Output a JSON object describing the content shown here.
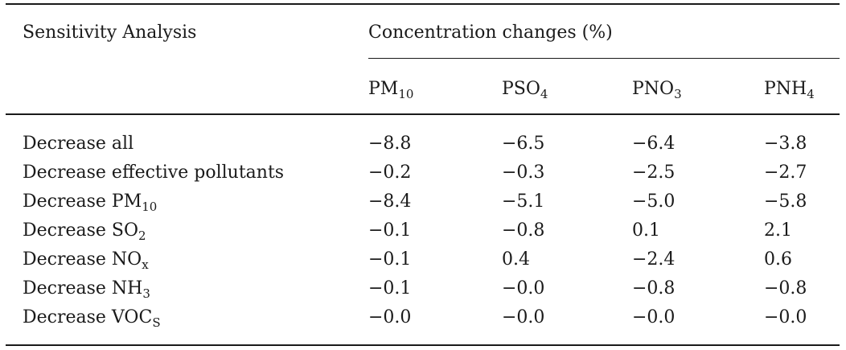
{
  "table": {
    "header": {
      "title": "Sensitivity Analysis",
      "group": "Concentration changes (%)",
      "columns": [
        {
          "base": "PM",
          "sub": "10"
        },
        {
          "base": "PSO",
          "sub": "4"
        },
        {
          "base": "PNO",
          "sub": "3"
        },
        {
          "base": "PNH",
          "sub": "4"
        }
      ]
    },
    "rows": [
      {
        "label": {
          "base": "Decrease all",
          "sub": ""
        },
        "values": [
          "−8.8",
          "−6.5",
          "−6.4",
          "−3.8"
        ]
      },
      {
        "label": {
          "base": "Decrease effective pollutants",
          "sub": ""
        },
        "values": [
          "−0.2",
          "−0.3",
          "−2.5",
          "−2.7"
        ]
      },
      {
        "label": {
          "base": "Decrease PM",
          "sub": "10"
        },
        "values": [
          "−8.4",
          "−5.1",
          "−5.0",
          "−5.8"
        ]
      },
      {
        "label": {
          "base": "Decrease SO",
          "sub": "2"
        },
        "values": [
          "−0.1",
          "−0.8",
          "0.1",
          "2.1"
        ]
      },
      {
        "label": {
          "base": "Decrease NO",
          "sub": "x"
        },
        "values": [
          "−0.1",
          "0.4",
          "−2.4",
          "0.6"
        ]
      },
      {
        "label": {
          "base": "Decrease NH",
          "sub": "3"
        },
        "values": [
          "−0.1",
          "−0.0",
          "−0.8",
          "−0.8"
        ]
      },
      {
        "label": {
          "base": "Decrease VOC",
          "sub": "S"
        },
        "values": [
          "−0.0",
          "−0.0",
          "−0.0",
          "−0.0"
        ]
      }
    ]
  }
}
